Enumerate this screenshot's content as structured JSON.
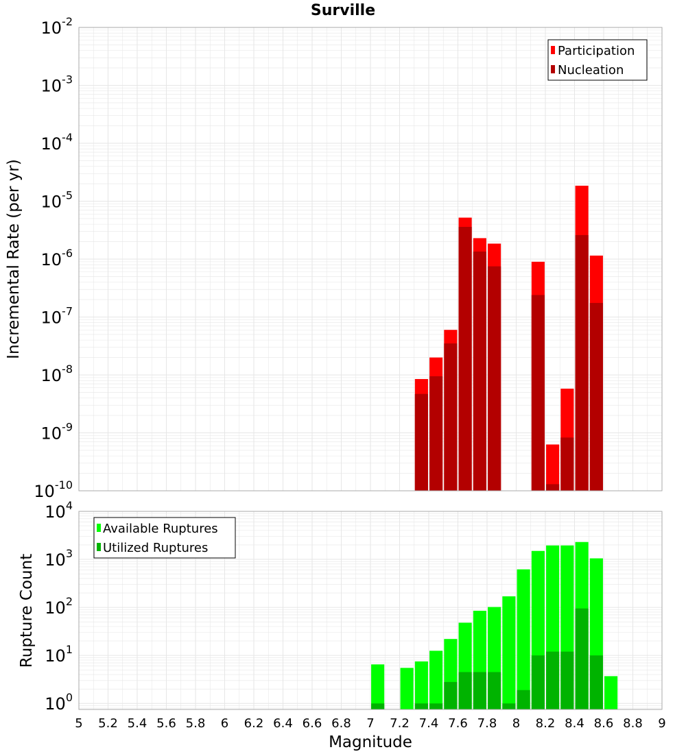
{
  "title": "Surville",
  "colors": {
    "participation": "#ff0000",
    "nucleation": "#b30000",
    "available": "#00ff00",
    "utilized": "#00b300",
    "grid": "#e6e6e6",
    "frame": "#aaaaaa"
  },
  "chart_data": [
    {
      "type": "bar",
      "ylabel": "Incremental Rate (per yr)",
      "yscale": "log",
      "ylim": [
        1e-10,
        0.01
      ],
      "xlim": [
        5,
        9
      ],
      "grid": true,
      "legend_position": "top-right",
      "y_ticks": [
        {
          "base": "10",
          "exp": "-2"
        },
        {
          "base": "10",
          "exp": "-3"
        },
        {
          "base": "10",
          "exp": "-4"
        },
        {
          "base": "10",
          "exp": "-5"
        },
        {
          "base": "10",
          "exp": "-6"
        },
        {
          "base": "10",
          "exp": "-7"
        },
        {
          "base": "10",
          "exp": "-8"
        },
        {
          "base": "10",
          "exp": "-9"
        },
        {
          "base": "10",
          "exp": "-10"
        }
      ],
      "x": [
        7.35,
        7.45,
        7.55,
        7.65,
        7.75,
        7.85,
        8.15,
        8.25,
        8.35,
        8.45,
        8.55
      ],
      "series": [
        {
          "name": "Participation",
          "values": [
            8.5e-09,
            2e-08,
            6e-08,
            5.2e-06,
            2.3e-06,
            1.85e-06,
            9e-07,
            6.3e-10,
            5.8e-09,
            1.85e-05,
            1.15e-06
          ]
        },
        {
          "name": "Nucleation",
          "values": [
            4.7e-09,
            9.5e-09,
            3.5e-08,
            3.6e-06,
            1.35e-06,
            7.5e-07,
            2.4e-07,
            1.3e-10,
            8.3e-10,
            2.6e-06,
            1.75e-07
          ]
        }
      ]
    },
    {
      "type": "bar",
      "ylabel": "Rupture Count",
      "xlabel": "Magnitude",
      "yscale": "log",
      "ylim": [
        0.75,
        10000
      ],
      "xlim": [
        5,
        9
      ],
      "grid": true,
      "legend_position": "top-left",
      "y_ticks": [
        {
          "base": "10",
          "exp": "4"
        },
        {
          "base": "10",
          "exp": "3"
        },
        {
          "base": "10",
          "exp": "2"
        },
        {
          "base": "10",
          "exp": "1"
        },
        {
          "base": "10",
          "exp": "0"
        }
      ],
      "x_ticks": [
        "5",
        "5.2",
        "5.4",
        "5.6",
        "5.8",
        "6",
        "6.2",
        "6.4",
        "6.6",
        "6.8",
        "7",
        "7.2",
        "7.4",
        "7.6",
        "7.8",
        "8",
        "8.2",
        "8.4",
        "8.6",
        "8.8",
        "9"
      ],
      "x": [
        7.05,
        7.25,
        7.35,
        7.45,
        7.55,
        7.65,
        7.75,
        7.85,
        7.95,
        8.05,
        8.15,
        8.25,
        8.35,
        8.45,
        8.55,
        8.65
      ],
      "series": [
        {
          "name": "Available Ruptures",
          "values": [
            6.5,
            5.5,
            7.5,
            12.5,
            22,
            48,
            85,
            102,
            170,
            620,
            1500,
            1950,
            1950,
            2300,
            1050,
            3.7
          ]
        },
        {
          "name": "Utilized Ruptures",
          "values": [
            1,
            null,
            1,
            1,
            2.8,
            4.5,
            4.5,
            4.5,
            1,
            1.9,
            10,
            12,
            12,
            95,
            10,
            null
          ]
        }
      ]
    }
  ]
}
